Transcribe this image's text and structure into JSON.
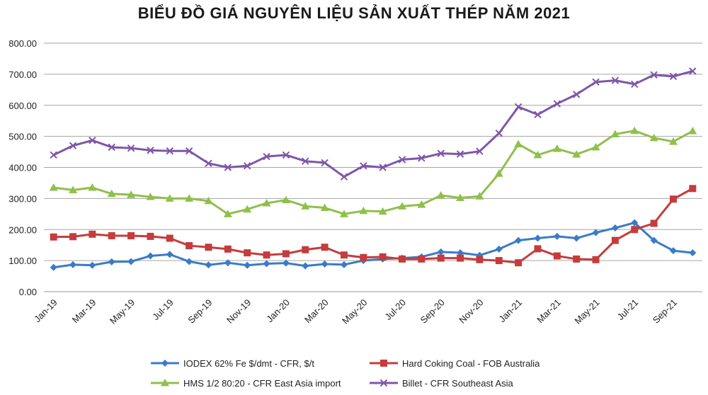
{
  "chart_data": {
    "type": "line",
    "title": "BIỂU ĐỒ GIÁ NGUYÊN LIỆU SẢN XUẤT THÉP NĂM 2021",
    "xlabel": "",
    "ylabel": "",
    "ylim": [
      0,
      800
    ],
    "yticks": [
      "0.00",
      "100.00",
      "200.00",
      "300.00",
      "400.00",
      "500.00",
      "600.00",
      "700.00",
      "800.00"
    ],
    "categories": [
      "Jan-19",
      "Feb-19",
      "Mar-19",
      "Apr-19",
      "May-19",
      "Jun-19",
      "Jul-19",
      "Aug-19",
      "Sep-19",
      "Oct-19",
      "Nov-19",
      "Dec-19",
      "Jan-20",
      "Feb-20",
      "Mar-20",
      "Apr-20",
      "May-20",
      "Jun-20",
      "Jul-20",
      "Aug-20",
      "Sep-20",
      "Oct-20",
      "Nov-20",
      "Dec-20",
      "Jan-21",
      "Feb-21",
      "Mar-21",
      "Apr-21",
      "May-21",
      "Jun-21",
      "Jul-21",
      "Aug-21",
      "Sep-21",
      "Oct-21"
    ],
    "xtick_labels": [
      "Jan-19",
      "Mar-19",
      "May-19",
      "Jul-19",
      "Sep-19",
      "Nov-19",
      "Jan-20",
      "Mar-20",
      "May-20",
      "Jul-20",
      "Sep-20",
      "Nov-20",
      "Jan-21",
      "Mar-21",
      "May-21",
      "Jul-21",
      "Sep-21"
    ],
    "grid": true,
    "legend_position": "bottom",
    "series": [
      {
        "name": "IODEX 62% Fe $/dmt - CFR, $/t",
        "color": "#3a7bc8",
        "marker": "diamond",
        "values": [
          78,
          87,
          85,
          96,
          97,
          115,
          120,
          97,
          86,
          93,
          85,
          90,
          92,
          83,
          89,
          87,
          100,
          105,
          108,
          112,
          128,
          125,
          117,
          137,
          165,
          172,
          178,
          172,
          190,
          205,
          222,
          165,
          132,
          125
        ]
      },
      {
        "name": "Hard Coking Coal - FOB Australia",
        "color": "#c43c3c",
        "marker": "square",
        "values": [
          176,
          177,
          185,
          180,
          180,
          178,
          172,
          148,
          143,
          137,
          125,
          118,
          122,
          135,
          143,
          118,
          110,
          112,
          105,
          105,
          108,
          108,
          103,
          100,
          93,
          138,
          115,
          105,
          103,
          165,
          200,
          220,
          298,
          332
        ]
      },
      {
        "name": "HMS 1/2 80:20 - CFR East Asia import",
        "color": "#8fc04a",
        "marker": "triangle",
        "values": [
          335,
          327,
          335,
          315,
          312,
          305,
          300,
          300,
          292,
          250,
          265,
          285,
          295,
          275,
          270,
          250,
          260,
          258,
          275,
          280,
          310,
          302,
          307,
          380,
          475,
          440,
          460,
          442,
          465,
          507,
          518,
          495,
          483,
          517
        ]
      },
      {
        "name": "Billet - CFR Southeast Asia",
        "color": "#7e57a8",
        "marker": "x",
        "values": [
          440,
          470,
          487,
          465,
          462,
          455,
          453,
          453,
          413,
          400,
          405,
          435,
          440,
          420,
          415,
          370,
          405,
          400,
          425,
          430,
          445,
          443,
          452,
          510,
          595,
          570,
          605,
          635,
          675,
          680,
          668,
          698,
          693,
          710
        ]
      }
    ]
  }
}
